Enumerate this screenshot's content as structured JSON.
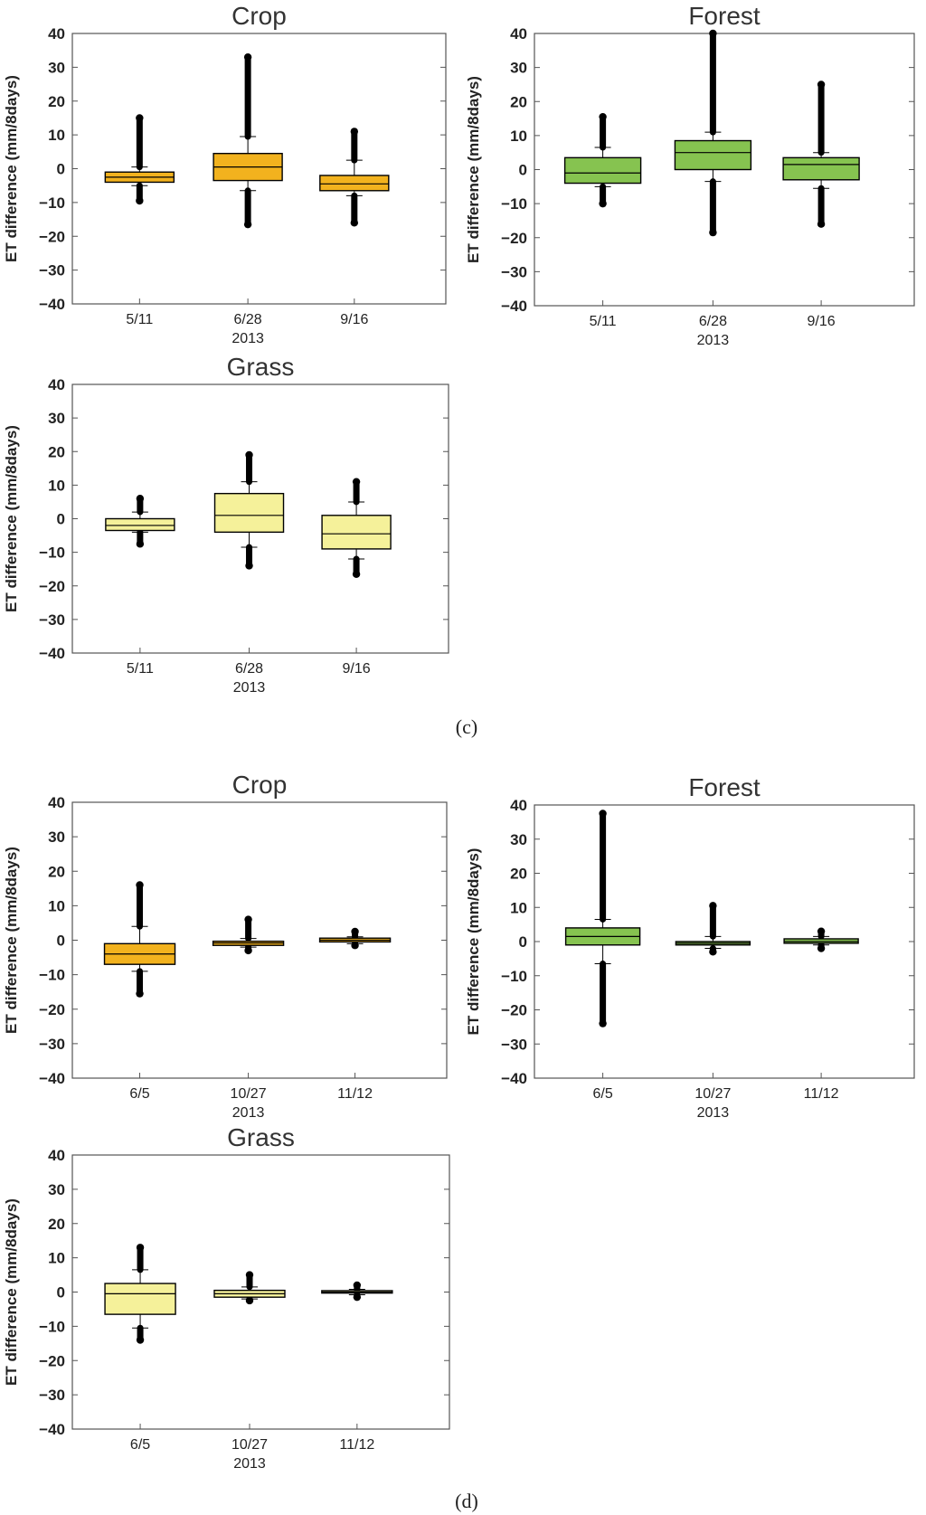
{
  "figure": {
    "captions": [
      "(c)",
      "(d)"
    ]
  },
  "colors": {
    "crop_c": "#f2b21e",
    "forest_c": "#86c350",
    "grass_c": "#f5f19a",
    "crop_d": "#f2b21e",
    "forest_d": "#86c350",
    "grass_d": "#f5f19a",
    "box_stroke": "#000000"
  },
  "chart_data": [
    {
      "type": "box",
      "panel": "c",
      "title": "Crop",
      "xlabel": "2013",
      "ylabel": "ET difference (mm/8days)",
      "ylim": [
        -40,
        40
      ],
      "yticks": [
        40,
        30,
        20,
        10,
        0,
        -10,
        -20,
        -30,
        -40
      ],
      "categories": [
        "5/11",
        "6/28",
        "9/16"
      ],
      "boxes": [
        {
          "q1": -4,
          "median": -2.5,
          "q3": -1,
          "whisker_low": -5,
          "whisker_high": 0.5,
          "outlier_low": -9.5,
          "outlier_high": 15
        },
        {
          "q1": -3.5,
          "median": 0.5,
          "q3": 4.5,
          "whisker_low": -6.5,
          "whisker_high": 9.5,
          "outlier_low": -16.5,
          "outlier_high": 33
        },
        {
          "q1": -6.5,
          "median": -4.5,
          "q3": -2,
          "whisker_low": -8,
          "whisker_high": 2.5,
          "outlier_low": -16,
          "outlier_high": 11
        }
      ]
    },
    {
      "type": "box",
      "panel": "c",
      "title": "Forest",
      "xlabel": "2013",
      "ylabel": "ET difference (mm/8days)",
      "ylim": [
        -40,
        40
      ],
      "yticks": [
        40,
        30,
        20,
        10,
        0,
        -10,
        -20,
        -30,
        -40
      ],
      "categories": [
        "5/11",
        "6/28",
        "9/16"
      ],
      "boxes": [
        {
          "q1": -4,
          "median": -1,
          "q3": 3.5,
          "whisker_low": -5,
          "whisker_high": 6.5,
          "outlier_low": -10,
          "outlier_high": 15.5
        },
        {
          "q1": 0,
          "median": 5,
          "q3": 8.5,
          "whisker_low": -3.5,
          "whisker_high": 11,
          "outlier_low": -18.5,
          "outlier_high": 40
        },
        {
          "q1": -3,
          "median": 1.5,
          "q3": 3.5,
          "whisker_low": -5.5,
          "whisker_high": 5,
          "outlier_low": -16,
          "outlier_high": 25
        }
      ]
    },
    {
      "type": "box",
      "panel": "c",
      "title": "Grass",
      "xlabel": "2013",
      "ylabel": "ET difference (mm/8days)",
      "ylim": [
        -40,
        40
      ],
      "yticks": [
        40,
        30,
        20,
        10,
        0,
        -10,
        -20,
        -30,
        -40
      ],
      "categories": [
        "5/11",
        "6/28",
        "9/16"
      ],
      "boxes": [
        {
          "q1": -3.5,
          "median": -2,
          "q3": 0,
          "whisker_low": -4,
          "whisker_high": 2,
          "outlier_low": -7.5,
          "outlier_high": 6
        },
        {
          "q1": -4,
          "median": 1,
          "q3": 7.5,
          "whisker_low": -8.5,
          "whisker_high": 11,
          "outlier_low": -14,
          "outlier_high": 19
        },
        {
          "q1": -9,
          "median": -4.5,
          "q3": 1,
          "whisker_low": -12,
          "whisker_high": 5,
          "outlier_low": -16.5,
          "outlier_high": 11
        }
      ]
    },
    {
      "type": "box",
      "panel": "d",
      "title": "Crop",
      "xlabel": "2013",
      "ylabel": "ET difference (mm/8days)",
      "ylim": [
        -40,
        40
      ],
      "yticks": [
        40,
        30,
        20,
        10,
        0,
        -10,
        -20,
        -30,
        -40
      ],
      "categories": [
        "6/5",
        "10/27",
        "11/12"
      ],
      "boxes": [
        {
          "q1": -7,
          "median": -4,
          "q3": -1,
          "whisker_low": -9,
          "whisker_high": 4,
          "outlier_low": -15.5,
          "outlier_high": 16
        },
        {
          "q1": -1.5,
          "median": -0.8,
          "q3": -0.3,
          "whisker_low": -2,
          "whisker_high": 0.5,
          "outlier_low": -3,
          "outlier_high": 6
        },
        {
          "q1": -0.5,
          "median": 0,
          "q3": 0.6,
          "whisker_low": -1,
          "whisker_high": 1,
          "outlier_low": -1.5,
          "outlier_high": 2.5
        }
      ]
    },
    {
      "type": "box",
      "panel": "d",
      "title": "Forest",
      "xlabel": "2013",
      "ylabel": "ET difference (mm/8days)",
      "ylim": [
        -40,
        40
      ],
      "yticks": [
        40,
        30,
        20,
        10,
        0,
        -10,
        -20,
        -30,
        -40
      ],
      "categories": [
        "6/5",
        "10/27",
        "11/12"
      ],
      "boxes": [
        {
          "q1": -1,
          "median": 1.5,
          "q3": 4,
          "whisker_low": -6.5,
          "whisker_high": 6.5,
          "outlier_low": -24,
          "outlier_high": 37.5
        },
        {
          "q1": -1,
          "median": -0.5,
          "q3": 0,
          "whisker_low": -2,
          "whisker_high": 1.5,
          "outlier_low": -3,
          "outlier_high": 10.5
        },
        {
          "q1": -0.5,
          "median": 0,
          "q3": 0.8,
          "whisker_low": -1,
          "whisker_high": 1.5,
          "outlier_low": -2,
          "outlier_high": 3
        }
      ]
    },
    {
      "type": "box",
      "panel": "d",
      "title": "Grass",
      "xlabel": "2013",
      "ylabel": "ET difference (mm/8days)",
      "ylim": [
        -40,
        40
      ],
      "yticks": [
        40,
        30,
        20,
        10,
        0,
        -10,
        -20,
        -30,
        -40
      ],
      "categories": [
        "6/5",
        "10/27",
        "11/12"
      ],
      "boxes": [
        {
          "q1": -6.5,
          "median": -0.5,
          "q3": 2.5,
          "whisker_low": -10.5,
          "whisker_high": 6.5,
          "outlier_low": -14,
          "outlier_high": 13
        },
        {
          "q1": -1.5,
          "median": -0.5,
          "q3": 0.5,
          "whisker_low": -2,
          "whisker_high": 1.5,
          "outlier_low": -2.5,
          "outlier_high": 5
        },
        {
          "q1": -0.3,
          "median": 0,
          "q3": 0.4,
          "whisker_low": -0.8,
          "whisker_high": 0.8,
          "outlier_low": -1.5,
          "outlier_high": 2
        }
      ]
    }
  ]
}
